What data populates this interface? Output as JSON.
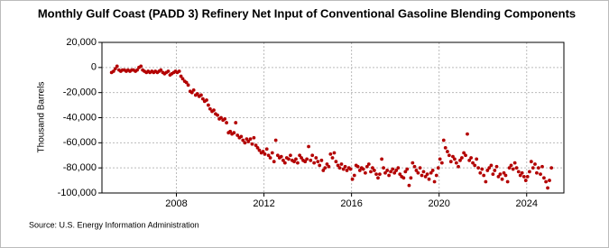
{
  "chart_data": {
    "type": "scatter",
    "title": "Monthly Gulf Coast (PADD 3) Refinery Net Input of Conventional Gasoline Blending Components",
    "y_label": "Thousand Barrels",
    "source": "Source: U.S. Energy Information Administration",
    "color": "#b30000",
    "grid": true,
    "xlim": [
      2004.6,
      2025.7
    ],
    "xticks": [
      2008,
      2012,
      2016,
      2020,
      2024
    ],
    "ylim": [
      -100000,
      20000
    ],
    "yticks": [
      {
        "value": -100000,
        "label": "-100,000"
      },
      {
        "value": -80000,
        "label": "-80,000"
      },
      {
        "value": -60000,
        "label": "-60,000"
      },
      {
        "value": -40000,
        "label": "-40,000"
      },
      {
        "value": -20000,
        "label": "-20,000"
      },
      0,
      {
        "value": 20000,
        "label": "20,000"
      }
    ],
    "x": [
      2005.04,
      2005.13,
      2005.21,
      2005.29,
      2005.38,
      2005.46,
      2005.54,
      2005.63,
      2005.71,
      2005.79,
      2005.88,
      2005.96,
      2006.04,
      2006.13,
      2006.21,
      2006.29,
      2006.38,
      2006.46,
      2006.54,
      2006.63,
      2006.71,
      2006.79,
      2006.88,
      2006.96,
      2007.04,
      2007.13,
      2007.21,
      2007.29,
      2007.38,
      2007.46,
      2007.54,
      2007.63,
      2007.71,
      2007.79,
      2007.88,
      2007.96,
      2008.04,
      2008.13,
      2008.21,
      2008.29,
      2008.38,
      2008.46,
      2008.54,
      2008.63,
      2008.71,
      2008.79,
      2008.88,
      2008.96,
      2009.04,
      2009.13,
      2009.21,
      2009.29,
      2009.38,
      2009.46,
      2009.54,
      2009.63,
      2009.71,
      2009.79,
      2009.88,
      2009.96,
      2010.04,
      2010.13,
      2010.21,
      2010.29,
      2010.38,
      2010.46,
      2010.54,
      2010.63,
      2010.71,
      2010.79,
      2010.88,
      2010.96,
      2011.04,
      2011.13,
      2011.21,
      2011.29,
      2011.38,
      2011.46,
      2011.54,
      2011.63,
      2011.71,
      2011.79,
      2011.88,
      2011.96,
      2012.04,
      2012.13,
      2012.21,
      2012.29,
      2012.38,
      2012.46,
      2012.54,
      2012.63,
      2012.71,
      2012.79,
      2012.88,
      2012.96,
      2013.04,
      2013.13,
      2013.21,
      2013.29,
      2013.38,
      2013.46,
      2013.54,
      2013.63,
      2013.71,
      2013.79,
      2013.88,
      2013.96,
      2014.04,
      2014.13,
      2014.21,
      2014.29,
      2014.38,
      2014.46,
      2014.54,
      2014.63,
      2014.71,
      2014.79,
      2014.88,
      2014.96,
      2015.04,
      2015.13,
      2015.21,
      2015.29,
      2015.38,
      2015.46,
      2015.54,
      2015.63,
      2015.71,
      2015.79,
      2015.88,
      2015.96,
      2016.04,
      2016.13,
      2016.21,
      2016.29,
      2016.38,
      2016.46,
      2016.54,
      2016.63,
      2016.71,
      2016.79,
      2016.88,
      2016.96,
      2017.04,
      2017.13,
      2017.21,
      2017.29,
      2017.38,
      2017.46,
      2017.54,
      2017.63,
      2017.71,
      2017.79,
      2017.88,
      2017.96,
      2018.04,
      2018.13,
      2018.21,
      2018.29,
      2018.38,
      2018.46,
      2018.54,
      2018.63,
      2018.71,
      2018.79,
      2018.88,
      2018.96,
      2019.04,
      2019.13,
      2019.21,
      2019.29,
      2019.38,
      2019.46,
      2019.54,
      2019.63,
      2019.71,
      2019.79,
      2019.88,
      2019.96,
      2020.04,
      2020.13,
      2020.21,
      2020.29,
      2020.38,
      2020.46,
      2020.54,
      2020.63,
      2020.71,
      2020.79,
      2020.88,
      2020.96,
      2021.04,
      2021.13,
      2021.21,
      2021.29,
      2021.38,
      2021.46,
      2021.54,
      2021.63,
      2021.71,
      2021.79,
      2021.88,
      2021.96,
      2022.04,
      2022.13,
      2022.21,
      2022.29,
      2022.38,
      2022.46,
      2022.54,
      2022.63,
      2022.71,
      2022.79,
      2022.88,
      2022.96,
      2023.04,
      2023.13,
      2023.21,
      2023.29,
      2023.38,
      2023.46,
      2023.54,
      2023.63,
      2023.71,
      2023.79,
      2023.88,
      2023.96,
      2024.04,
      2024.13,
      2024.21,
      2024.29,
      2024.38,
      2024.46,
      2024.54,
      2024.63,
      2024.71,
      2024.79,
      2024.88,
      2024.96,
      2025.04,
      2025.13
    ],
    "values": [
      -4000,
      -3000,
      -1000,
      1000,
      -2000,
      -3000,
      -2000,
      -2000,
      -3000,
      -2000,
      -3000,
      -2000,
      -2000,
      -3000,
      -2000,
      0,
      1000,
      -2000,
      -3000,
      -4000,
      -3000,
      -4000,
      -3000,
      -4000,
      -3000,
      -4000,
      -3000,
      -2000,
      -4000,
      -5000,
      -4000,
      -3000,
      -6000,
      -5000,
      -4000,
      -3000,
      -4000,
      -3000,
      -7000,
      -9000,
      -11000,
      -12000,
      -14000,
      -19000,
      -20000,
      -18000,
      -22000,
      -21000,
      -23000,
      -22000,
      -25000,
      -27000,
      -26000,
      -30000,
      -33000,
      -35000,
      -34000,
      -37000,
      -38000,
      -41000,
      -40000,
      -42000,
      -41000,
      -44000,
      -52000,
      -51000,
      -53000,
      -52000,
      -44000,
      -54000,
      -56000,
      -55000,
      -58000,
      -60000,
      -57000,
      -59000,
      -57000,
      -61000,
      -56000,
      -62000,
      -64000,
      -66000,
      -68000,
      -67000,
      -69000,
      -65000,
      -70000,
      -72000,
      -68000,
      -75000,
      -58000,
      -70000,
      -72000,
      -71000,
      -74000,
      -76000,
      -72000,
      -73000,
      -70000,
      -74000,
      -75000,
      -73000,
      -76000,
      -70000,
      -72000,
      -74000,
      -75000,
      -73000,
      -63000,
      -74000,
      -70000,
      -76000,
      -72000,
      -75000,
      -78000,
      -74000,
      -82000,
      -80000,
      -77000,
      -79000,
      -69000,
      -72000,
      -68000,
      -75000,
      -78000,
      -80000,
      -77000,
      -81000,
      -79000,
      -82000,
      -80000,
      -81000,
      -89000,
      -86000,
      -78000,
      -79000,
      -82000,
      -80000,
      -81000,
      -84000,
      -79000,
      -77000,
      -83000,
      -80000,
      -82000,
      -85000,
      -88000,
      -85000,
      -73000,
      -80000,
      -84000,
      -82000,
      -86000,
      -83000,
      -81000,
      -84000,
      -82000,
      -80000,
      -85000,
      -87000,
      -88000,
      -83000,
      -81000,
      -94000,
      -88000,
      -76000,
      -79000,
      -82000,
      -84000,
      -80000,
      -86000,
      -83000,
      -87000,
      -85000,
      -89000,
      -84000,
      -82000,
      -91000,
      -86000,
      -80000,
      -73000,
      -76000,
      -58000,
      -64000,
      -67000,
      -70000,
      -75000,
      -71000,
      -73000,
      -76000,
      -79000,
      -74000,
      -72000,
      -68000,
      -70000,
      -53000,
      -74000,
      -72000,
      -76000,
      -78000,
      -73000,
      -80000,
      -84000,
      -81000,
      -86000,
      -91000,
      -82000,
      -80000,
      -78000,
      -85000,
      -82000,
      -79000,
      -87000,
      -85000,
      -89000,
      -84000,
      -86000,
      -91000,
      -80000,
      -78000,
      -81000,
      -76000,
      -80000,
      -83000,
      -86000,
      -84000,
      -87000,
      -90000,
      -87000,
      -83000,
      -75000,
      -80000,
      -77000,
      -84000,
      -80000,
      -85000,
      -79000,
      -88000,
      -91000,
      -96000,
      -90000,
      -80000
    ]
  }
}
